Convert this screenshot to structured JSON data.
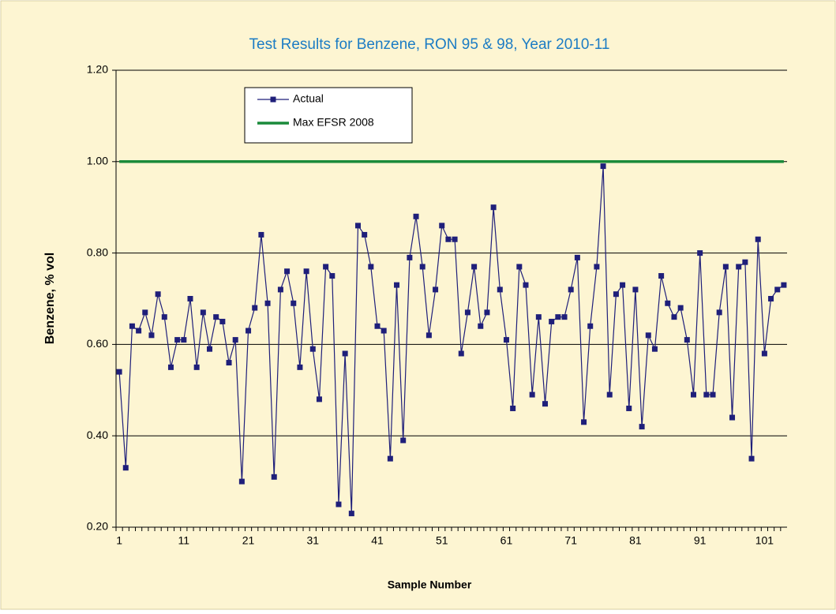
{
  "chart_data": {
    "type": "line",
    "title": "Test Results for Benzene, RON 95 & 98, Year 2010-11",
    "x_label": "Sample Number",
    "y_label": "Benzene, % vol",
    "categories": [
      "1",
      null,
      null,
      null,
      null,
      null,
      null,
      null,
      null,
      null,
      "11",
      null,
      null,
      null,
      null,
      null,
      null,
      null,
      null,
      null,
      "21",
      null,
      null,
      null,
      null,
      null,
      null,
      null,
      null,
      null,
      "31",
      null,
      null,
      null,
      null,
      null,
      null,
      null,
      null,
      null,
      "41",
      null,
      null,
      null,
      null,
      null,
      null,
      null,
      null,
      null,
      "51",
      null,
      null,
      null,
      null,
      null,
      null,
      null,
      null,
      null,
      "61",
      null,
      null,
      null,
      null,
      null,
      null,
      null,
      null,
      null,
      "71",
      null,
      null,
      null,
      null,
      null,
      null,
      null,
      null,
      null,
      "81",
      null,
      null,
      null,
      null,
      null,
      null,
      null,
      null,
      null,
      "91",
      null,
      null,
      null,
      null,
      null,
      null,
      null,
      null,
      null,
      "101",
      null,
      null,
      null
    ],
    "series": [
      {
        "name": "Actual",
        "color": "#1f1f7a",
        "marker": "square",
        "values": [
          0.54,
          0.33,
          0.64,
          0.63,
          0.67,
          0.62,
          0.71,
          0.66,
          0.55,
          0.61,
          0.61,
          0.7,
          0.55,
          0.67,
          0.59,
          0.66,
          0.65,
          0.56,
          0.61,
          0.3,
          0.63,
          0.68,
          0.84,
          0.69,
          0.31,
          0.72,
          0.76,
          0.69,
          0.55,
          0.76,
          0.59,
          0.48,
          0.77,
          0.75,
          0.25,
          0.58,
          0.23,
          0.86,
          0.84,
          0.77,
          0.64,
          0.63,
          0.35,
          0.73,
          0.39,
          0.79,
          0.88,
          0.77,
          0.62,
          0.72,
          0.86,
          0.83,
          0.83,
          0.58,
          0.67,
          0.77,
          0.64,
          0.67,
          0.9,
          0.72,
          0.61,
          0.46,
          0.77,
          0.73,
          0.49,
          0.66,
          0.47,
          0.65,
          0.66,
          0.66,
          0.72,
          0.79,
          0.43,
          0.64,
          0.77,
          0.99,
          0.49,
          0.71,
          0.73,
          0.46,
          0.72,
          0.42,
          0.62,
          0.59,
          0.75,
          0.69,
          0.66,
          0.68,
          0.61,
          0.49,
          0.8,
          0.49,
          0.49,
          0.67,
          0.77,
          0.44,
          0.77,
          0.78,
          0.35,
          0.83,
          0.58,
          0.7,
          0.72,
          0.73
        ]
      },
      {
        "name": "Max EFSR 2008",
        "color": "#1a8a3a",
        "marker": "none",
        "values": [
          1,
          1,
          1,
          1,
          1,
          1,
          1,
          1,
          1,
          1,
          1,
          1,
          1,
          1,
          1,
          1,
          1,
          1,
          1,
          1,
          1,
          1,
          1,
          1,
          1,
          1,
          1,
          1,
          1,
          1,
          1,
          1,
          1,
          1,
          1,
          1,
          1,
          1,
          1,
          1,
          1,
          1,
          1,
          1,
          1,
          1,
          1,
          1,
          1,
          1,
          1,
          1,
          1,
          1,
          1,
          1,
          1,
          1,
          1,
          1,
          1,
          1,
          1,
          1,
          1,
          1,
          1,
          1,
          1,
          1,
          1,
          1,
          1,
          1,
          1,
          1,
          1,
          1,
          1,
          1,
          1,
          1,
          1,
          1,
          1,
          1,
          1,
          1,
          1,
          1,
          1,
          1,
          1,
          1,
          1,
          1,
          1,
          1,
          1,
          1,
          1,
          1,
          1,
          1
        ]
      }
    ],
    "ylim": [
      0.2,
      1.2
    ],
    "yticks": [
      {
        "value": 0.2,
        "label": "0.20"
      },
      {
        "value": 0.4,
        "label": "0.40"
      },
      {
        "value": 0.6,
        "label": "0.60"
      },
      {
        "value": 0.8,
        "label": "0.80"
      },
      {
        "value": 1.0,
        "label": "1.00"
      },
      {
        "value": 1.2,
        "label": "1.20"
      }
    ],
    "grid": true,
    "legend": "upper-left"
  }
}
